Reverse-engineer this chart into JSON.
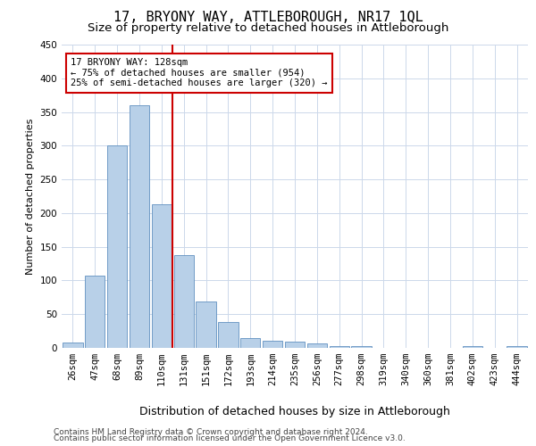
{
  "title1": "17, BRYONY WAY, ATTLEBOROUGH, NR17 1QL",
  "title2": "Size of property relative to detached houses in Attleborough",
  "xlabel": "Distribution of detached houses by size in Attleborough",
  "ylabel": "Number of detached properties",
  "categories": [
    "26sqm",
    "47sqm",
    "68sqm",
    "89sqm",
    "110sqm",
    "131sqm",
    "151sqm",
    "172sqm",
    "193sqm",
    "214sqm",
    "235sqm",
    "256sqm",
    "277sqm",
    "298sqm",
    "319sqm",
    "340sqm",
    "360sqm",
    "381sqm",
    "402sqm",
    "423sqm",
    "444sqm"
  ],
  "values": [
    8,
    107,
    301,
    360,
    213,
    137,
    69,
    38,
    14,
    10,
    9,
    6,
    2,
    2,
    0,
    0,
    0,
    0,
    3,
    0,
    3
  ],
  "bar_color": "#b8d0e8",
  "bar_edge_color": "#6090c0",
  "vline_x": 4.5,
  "vline_color": "#cc0000",
  "annotation_line1": "17 BRYONY WAY: 128sqm",
  "annotation_line2": "← 75% of detached houses are smaller (954)",
  "annotation_line3": "25% of semi-detached houses are larger (320) →",
  "annotation_box_color": "#ffffff",
  "annotation_box_edge": "#cc0000",
  "ylim": [
    0,
    450
  ],
  "yticks": [
    0,
    50,
    100,
    150,
    200,
    250,
    300,
    350,
    400,
    450
  ],
  "footer1": "Contains HM Land Registry data © Crown copyright and database right 2024.",
  "footer2": "Contains public sector information licensed under the Open Government Licence v3.0.",
  "bg_color": "#ffffff",
  "grid_color": "#ccd8ea",
  "title1_fontsize": 11,
  "title2_fontsize": 9.5,
  "tick_fontsize": 7.5,
  "ylabel_fontsize": 8,
  "xlabel_fontsize": 9,
  "annot_fontsize": 7.5,
  "footer_fontsize": 6.5
}
